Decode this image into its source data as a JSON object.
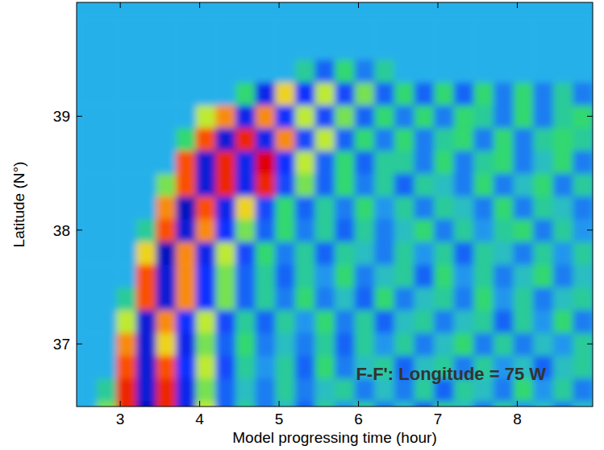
{
  "chart_data": {
    "type": "heatmap",
    "xlabel": "Model progressing time (hour)",
    "ylabel": "Latitude (N°)",
    "annotation": "F-F': Longitude = 75 W",
    "xlim": [
      2.45,
      8.95
    ],
    "ylim": [
      36.45,
      40.0
    ],
    "xticks": [
      3,
      4,
      5,
      6,
      7,
      8
    ],
    "yticks": [
      37,
      38,
      39
    ],
    "zlim": [
      -1,
      1
    ],
    "x": [
      2.575,
      2.825,
      3.075,
      3.325,
      3.575,
      3.825,
      4.075,
      4.325,
      4.575,
      4.825,
      5.075,
      5.325,
      5.575,
      5.825,
      6.075,
      6.325,
      6.575,
      6.825,
      7.075,
      7.325,
      7.575,
      7.825,
      8.075,
      8.325,
      8.575,
      8.825
    ],
    "y": [
      36.4,
      36.6,
      36.8,
      37.0,
      37.2,
      37.4,
      37.6,
      37.8,
      38.0,
      38.2,
      38.4,
      38.6,
      38.8,
      39.0,
      39.2,
      39.4,
      39.6,
      39.8
    ],
    "values": [
      [
        0,
        0.4,
        0.9,
        -0.8,
        0.9,
        -0.6,
        0.5,
        -0.3,
        0.2,
        -0.2,
        0.1,
        -0.3,
        0.2,
        -0.1,
        0.2,
        -0.2,
        0.1,
        -0.3,
        0.2,
        0.1,
        -0.2,
        0.2,
        -0.1,
        0.1,
        -0.2,
        0.1
      ],
      [
        0,
        0.2,
        0.9,
        -0.7,
        0.9,
        -0.6,
        0.4,
        -0.3,
        0.1,
        -0.2,
        0.2,
        -0.2,
        0.1,
        0.2,
        -0.2,
        0.1,
        -0.2,
        0.2,
        -0.3,
        0.2,
        0.1,
        -0.2,
        0.3,
        -0.1,
        0.2,
        -0.2
      ],
      [
        0,
        0,
        0.8,
        -0.7,
        0.8,
        -0.5,
        0.5,
        -0.4,
        0.2,
        -0.1,
        0.2,
        -0.3,
        0.3,
        -0.2,
        0.1,
        0.2,
        -0.3,
        0.1,
        0.2,
        -0.2,
        0.2,
        -0.1,
        0.1,
        -0.3,
        0.1,
        0.2
      ],
      [
        0,
        0,
        0.7,
        -0.7,
        0.6,
        -0.6,
        0.4,
        -0.3,
        0.3,
        -0.2,
        0.1,
        -0.2,
        0.2,
        -0.3,
        0.2,
        -0.1,
        0.2,
        -0.2,
        0.1,
        0.3,
        -0.2,
        0.2,
        -0.2,
        0.1,
        -0.1,
        0.2
      ],
      [
        0,
        0,
        0.5,
        -0.7,
        0.7,
        -0.5,
        0.5,
        -0.4,
        0.2,
        -0.3,
        0.2,
        -0.1,
        0.3,
        -0.2,
        0.2,
        -0.3,
        0.1,
        0.2,
        -0.2,
        0.1,
        0.2,
        -0.3,
        0.2,
        -0.1,
        0.3,
        -0.2
      ],
      [
        0,
        0,
        0.2,
        0.8,
        -0.7,
        0.7,
        -0.5,
        0.4,
        -0.3,
        0.2,
        -0.2,
        0.3,
        -0.2,
        0.1,
        -0.3,
        0.3,
        -0.2,
        0.1,
        0.2,
        -0.2,
        0.3,
        -0.1,
        0.2,
        -0.2,
        0.1,
        0.2
      ],
      [
        0,
        0,
        0,
        0.8,
        -0.7,
        0.7,
        -0.5,
        0.4,
        -0.3,
        0.2,
        -0.3,
        0.2,
        -0.1,
        0.3,
        -0.2,
        0.1,
        0.2,
        -0.3,
        0.3,
        -0.1,
        0.2,
        -0.2,
        0.1,
        0.3,
        -0.2,
        0.1
      ],
      [
        0,
        0,
        0,
        0.6,
        -0.8,
        0.7,
        -0.6,
        0.5,
        -0.4,
        0.3,
        -0.2,
        0.2,
        -0.3,
        0.2,
        0.1,
        -0.2,
        0.2,
        -0.1,
        0.2,
        -0.3,
        0.2,
        0.1,
        -0.2,
        0.2,
        -0.1,
        0.2
      ],
      [
        0,
        0,
        0,
        0.2,
        0.8,
        -0.7,
        0.7,
        -0.5,
        0.4,
        -0.3,
        0.3,
        -0.2,
        0.2,
        -0.3,
        0.2,
        -0.2,
        0.1,
        0.3,
        -0.2,
        0.2,
        -0.1,
        0.2,
        0.3,
        -0.2,
        0.2,
        -0.1
      ],
      [
        0,
        0,
        0,
        0,
        0.7,
        -0.8,
        0.8,
        -0.6,
        0.6,
        -0.4,
        0.3,
        -0.3,
        0.2,
        -0.2,
        0.3,
        -0.1,
        0.2,
        -0.2,
        0.2,
        0.1,
        -0.2,
        0.3,
        -0.2,
        0.2,
        0.1,
        -0.2
      ],
      [
        0,
        0,
        0,
        0,
        0.4,
        0.8,
        -0.7,
        0.9,
        -0.6,
        0.9,
        -0.4,
        0.4,
        -0.3,
        0.3,
        -0.2,
        0.2,
        -0.3,
        0.2,
        0.1,
        -0.2,
        0.3,
        -0.2,
        0.1,
        0.3,
        -0.2,
        0.2
      ],
      [
        0,
        0,
        0,
        0,
        0,
        0.8,
        -0.7,
        0.9,
        -0.6,
        1.0,
        -0.5,
        0.5,
        -0.3,
        0.3,
        -0.3,
        0.2,
        0.2,
        -0.2,
        0.3,
        -0.2,
        0.2,
        0.3,
        -0.2,
        0.1,
        0.3,
        -0.2
      ],
      [
        0,
        0,
        0,
        0,
        0,
        0.3,
        0.8,
        -0.7,
        0.9,
        -0.6,
        0.7,
        -0.4,
        0.5,
        -0.3,
        0.3,
        -0.2,
        0.3,
        -0.2,
        0.2,
        0.3,
        -0.2,
        0.3,
        -0.2,
        0.2,
        0.3,
        0.2
      ],
      [
        0,
        0,
        0,
        0,
        0,
        0,
        0.5,
        0.7,
        -0.6,
        0.7,
        -0.5,
        0.5,
        -0.4,
        0.4,
        -0.3,
        0.3,
        -0.2,
        0.3,
        -0.2,
        0.3,
        0.2,
        -0.2,
        0.3,
        -0.2,
        0.2,
        0.3
      ],
      [
        0,
        0,
        0,
        0,
        0,
        0,
        0,
        0,
        0.3,
        -0.6,
        0.6,
        -0.5,
        0.5,
        -0.4,
        0.4,
        -0.3,
        0.3,
        -0.3,
        0.3,
        -0.3,
        0.3,
        -0.2,
        0.3,
        -0.2,
        0.2,
        -0.2
      ],
      [
        0,
        0,
        0,
        0,
        0,
        0,
        0,
        0,
        0,
        0,
        0,
        0.2,
        -0.3,
        0.3,
        -0.2,
        0.2,
        0,
        0,
        0,
        0,
        0,
        0,
        0,
        0,
        0,
        0
      ],
      [
        0,
        0,
        0,
        0,
        0,
        0,
        0,
        0,
        0,
        0,
        0,
        0,
        0,
        0,
        0,
        0,
        0,
        0,
        0,
        0,
        0,
        0,
        0,
        0,
        0,
        0
      ],
      [
        0,
        0,
        0,
        0,
        0,
        0,
        0,
        0,
        0,
        0,
        0,
        0,
        0,
        0,
        0,
        0,
        0,
        0,
        0,
        0,
        0,
        0,
        0,
        0,
        0,
        0
      ]
    ]
  }
}
